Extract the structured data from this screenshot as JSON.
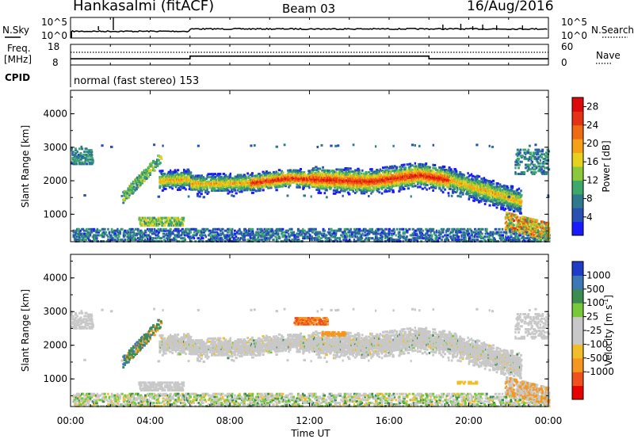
{
  "header": {
    "station": "Hankasalmi (fitACF)",
    "beam": "Beam 03",
    "date": "16/Aug/2016"
  },
  "side_labels": {
    "nsky": "N.Sky",
    "nsearch": "N.Search",
    "freq_line1": "Freq.",
    "freq_unit": "[MHz]",
    "nave": "Nave",
    "cpid": "CPID"
  },
  "cpid_text": "normal (fast stereo) 153",
  "noise_panel": {
    "left_ticks": [
      "10^5",
      "10^0"
    ],
    "right_ticks": [
      "10^5",
      "10^0"
    ]
  },
  "freq_panel": {
    "left_ticks": [
      "18",
      "8"
    ],
    "right_ticks": [
      "60",
      "0"
    ],
    "freq_mhz_segments": [
      {
        "start": 0.0,
        "end": 6.0,
        "value": 11.0
      },
      {
        "start": 6.0,
        "end": 18.0,
        "value": 12.3
      },
      {
        "start": 18.0,
        "end": 24.0,
        "value": 11.0
      }
    ]
  },
  "chart_data": [
    {
      "type": "heatmap",
      "quantity": "Power",
      "xlabel": "",
      "ylabel": "Slant Range [km]",
      "xlim": [
        "00:00",
        "24:00"
      ],
      "ylim": [
        180,
        4700
      ],
      "yticks": [
        "1000",
        "2000",
        "3000",
        "4000"
      ],
      "colorbar": {
        "label": "Power [dB]",
        "ticks": [
          "4",
          "8",
          "12",
          "16",
          "20",
          "24",
          "28"
        ],
        "range": [
          0,
          30
        ]
      }
    },
    {
      "type": "heatmap",
      "quantity": "Velocity",
      "xlabel": "Time UT",
      "ylabel": "Slant Range [km]",
      "xlim": [
        "00:00",
        "24:00"
      ],
      "ylim": [
        180,
        4700
      ],
      "xticks": [
        "00:00",
        "04:00",
        "08:00",
        "12:00",
        "16:00",
        "20:00",
        "00:00"
      ],
      "yticks": [
        "1000",
        "2000",
        "3000",
        "4000"
      ],
      "colorbar": {
        "label": "Velocity [m s",
        "label_sup": "-1",
        "label_end": "]",
        "ticks": [
          "1000",
          "500",
          "100",
          "25",
          "-25",
          "-100",
          "-500",
          "-1000"
        ]
      }
    }
  ]
}
